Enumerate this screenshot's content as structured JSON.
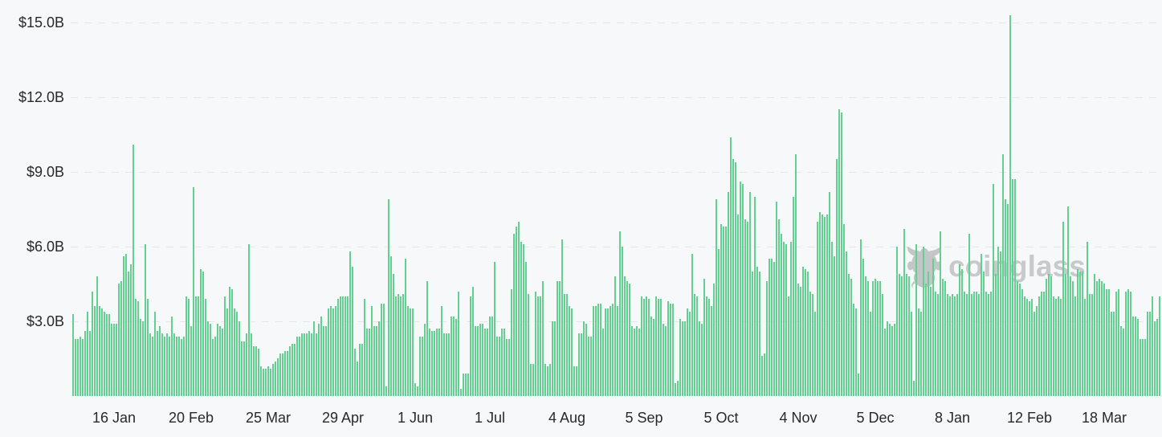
{
  "watermark": {
    "text": "coinglass",
    "icon": "coinglass-bull",
    "color": "#c7c9cb"
  },
  "colors": {
    "background": "#f7f8f9",
    "bar": "#63cf90",
    "gridline": "#e4e6e8",
    "axis_text": "#26292d",
    "watermark": "#c7c9cb"
  },
  "chart_data": {
    "type": "bar",
    "title": "",
    "xlabel": "",
    "ylabel": "",
    "unit": "USD billions",
    "period": "daily",
    "grid": "horizontal-dashed",
    "legend": "none",
    "ylim": [
      0,
      15.5
    ],
    "y_axis": {
      "ticks": [
        {
          "label": "$15.0B",
          "value": 15
        },
        {
          "label": "$12.0B",
          "value": 12
        },
        {
          "label": "$9.0B",
          "value": 9
        },
        {
          "label": "$6.0B",
          "value": 6
        },
        {
          "label": "$3.0B",
          "value": 3
        }
      ]
    },
    "x_ticks": [
      {
        "label": "16 Jan",
        "index": 17
      },
      {
        "label": "20 Feb",
        "index": 49
      },
      {
        "label": "25 Mar",
        "index": 81
      },
      {
        "label": "29 Apr",
        "index": 112
      },
      {
        "label": "1 Jun",
        "index": 142
      },
      {
        "label": "1 Jul",
        "index": 173
      },
      {
        "label": "4 Aug",
        "index": 205
      },
      {
        "label": "5 Sep",
        "index": 237
      },
      {
        "label": "5 Oct",
        "index": 269
      },
      {
        "label": "4 Nov",
        "index": 301
      },
      {
        "label": "5 Dec",
        "index": 333
      },
      {
        "label": "8 Jan",
        "index": 365
      },
      {
        "label": "12 Feb",
        "index": 397
      },
      {
        "label": "18 Mar",
        "index": 428
      }
    ],
    "values": [
      3.3,
      2.3,
      2.3,
      2.4,
      2.3,
      2.6,
      3.4,
      2.6,
      4.2,
      3.6,
      4.8,
      3.6,
      3.5,
      3.4,
      3.3,
      3.3,
      2.9,
      2.9,
      2.9,
      4.5,
      4.6,
      5.6,
      5.7,
      5.0,
      5.3,
      10.1,
      3.9,
      3.8,
      3.1,
      3.0,
      6.1,
      3.9,
      2.5,
      2.4,
      3.4,
      2.6,
      2.8,
      2.5,
      2.4,
      2.5,
      2.4,
      3.2,
      2.5,
      2.4,
      2.4,
      2.3,
      2.4,
      4.0,
      3.9,
      2.8,
      8.4,
      4.0,
      4.0,
      5.1,
      5.0,
      3.9,
      3.0,
      2.9,
      2.3,
      2.4,
      2.9,
      2.8,
      2.7,
      4.0,
      3.5,
      4.4,
      4.3,
      3.5,
      3.4,
      3.0,
      2.2,
      2.2,
      2.5,
      6.1,
      2.5,
      2.0,
      2.0,
      1.9,
      1.2,
      1.1,
      1.1,
      1.2,
      1.1,
      1.3,
      1.4,
      1.5,
      1.7,
      1.7,
      1.8,
      1.8,
      2.0,
      2.1,
      2.1,
      2.4,
      2.4,
      2.5,
      2.5,
      2.5,
      2.6,
      2.5,
      3.0,
      2.5,
      2.9,
      3.2,
      2.8,
      2.8,
      3.5,
      3.6,
      3.5,
      3.6,
      3.9,
      4.0,
      4.0,
      4.0,
      4.0,
      5.8,
      5.2,
      1.9,
      1.4,
      2.1,
      2.1,
      3.9,
      2.7,
      2.7,
      3.6,
      2.8,
      2.8,
      3.0,
      3.7,
      3.7,
      0.4,
      7.9,
      5.6,
      4.9,
      4.0,
      4.1,
      4.0,
      4.1,
      5.5,
      3.6,
      3.5,
      3.5,
      0.5,
      0.4,
      2.4,
      2.4,
      2.9,
      4.6,
      2.7,
      2.6,
      2.6,
      2.7,
      2.7,
      3.6,
      2.5,
      2.5,
      2.5,
      3.2,
      3.2,
      3.1,
      4.2,
      0.3,
      0.9,
      0.9,
      0.9,
      4.0,
      4.4,
      2.8,
      2.8,
      2.9,
      2.9,
      2.7,
      2.7,
      3.2,
      3.2,
      5.4,
      2.4,
      2.4,
      2.7,
      2.7,
      2.3,
      2.3,
      4.3,
      6.5,
      6.8,
      7.0,
      6.2,
      6.1,
      5.4,
      4.1,
      1.3,
      1.3,
      4.2,
      4.0,
      4.0,
      4.6,
      1.3,
      1.2,
      1.3,
      3.0,
      3.0,
      4.6,
      4.6,
      6.3,
      4.1,
      4.1,
      3.6,
      3.5,
      1.2,
      1.2,
      2.5,
      2.5,
      3.0,
      2.9,
      2.4,
      2.4,
      3.6,
      3.6,
      3.7,
      3.7,
      2.7,
      3.5,
      3.5,
      3.6,
      3.7,
      4.8,
      3.6,
      6.6,
      6.0,
      4.8,
      4.6,
      4.5,
      2.8,
      2.7,
      2.8,
      2.7,
      4.0,
      3.9,
      4.0,
      3.9,
      3.2,
      3.1,
      4.0,
      3.9,
      3.9,
      2.9,
      2.8,
      3.8,
      3.7,
      3.7,
      0.5,
      0.6,
      3.1,
      3.0,
      3.0,
      3.5,
      3.4,
      5.7,
      4.1,
      4.0,
      3.0,
      2.9,
      4.7,
      4.0,
      3.9,
      3.6,
      4.5,
      7.9,
      5.9,
      6.9,
      6.8,
      6.8,
      8.2,
      10.4,
      9.5,
      9.4,
      7.3,
      8.6,
      8.5,
      7.1,
      7.0,
      8.2,
      5.0,
      8.0,
      5.2,
      5.0,
      1.6,
      1.7,
      4.6,
      5.5,
      5.5,
      5.4,
      7.8,
      7.1,
      6.5,
      6.2,
      6.1,
      4.0,
      6.2,
      8.0,
      9.7,
      4.5,
      4.4,
      5.2,
      5.1,
      5.0,
      4.2,
      4.1,
      3.4,
      7.0,
      7.4,
      7.3,
      7.2,
      7.3,
      8.2,
      6.2,
      5.6,
      9.5,
      11.5,
      11.4,
      6.9,
      5.8,
      4.9,
      4.7,
      3.7,
      3.5,
      0.9,
      6.3,
      5.5,
      4.8,
      4.6,
      3.4,
      4.6,
      4.7,
      4.6,
      4.6,
      4.1,
      2.7,
      3.0,
      2.9,
      2.8,
      2.9,
      6.0,
      4.9,
      4.8,
      6.7,
      4.9,
      4.8,
      3.4,
      0.6,
      6.1,
      3.5,
      3.4,
      6.0,
      4.5,
      5.0,
      4.4,
      5.5,
      4.2,
      4.1,
      6.6,
      4.7,
      4.6,
      4.1,
      4.0,
      4.1,
      4.0,
      4.1,
      5.3,
      5.1,
      4.2,
      4.1,
      6.5,
      4.1,
      4.2,
      4.2,
      4.1,
      5.7,
      5.0,
      4.2,
      4.1,
      4.2,
      8.5,
      4.9,
      6.0,
      5.8,
      9.7,
      7.9,
      7.7,
      15.3,
      8.7,
      8.7,
      4.6,
      4.5,
      4.3,
      4.0,
      3.9,
      3.8,
      3.9,
      3.4,
      3.6,
      4.0,
      4.2,
      4.2,
      4.7,
      4.9,
      4.8,
      4.0,
      3.9,
      4.0,
      3.9,
      7.0,
      4.9,
      7.6,
      4.8,
      4.6,
      4.0,
      5.1,
      5.0,
      5.0,
      3.9,
      6.2,
      4.1,
      4.1,
      4.9,
      4.6,
      4.7,
      4.6,
      4.5,
      4.3,
      4.3,
      3.4,
      3.4,
      4.2,
      4.3,
      2.8,
      2.7,
      4.2,
      4.3,
      4.2,
      3.2,
      3.2,
      3.1,
      2.3,
      2.3,
      2.3,
      3.4,
      3.4,
      4.0,
      3.0,
      3.1,
      4.0
    ]
  }
}
